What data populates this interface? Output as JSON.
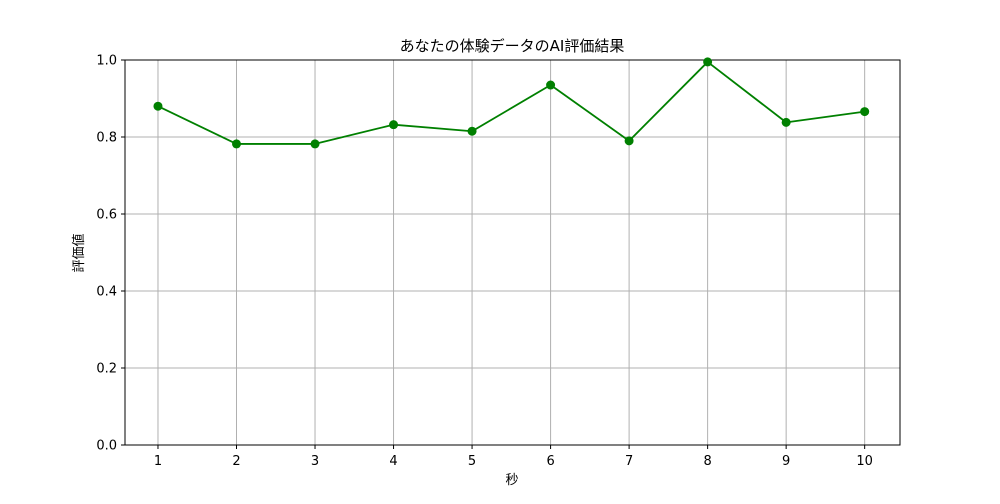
{
  "chart_data": {
    "type": "line",
    "title": "あなたの体験データのAI評価結果",
    "xlabel": "秒",
    "ylabel": "評価値",
    "x": [
      1,
      2,
      3,
      4,
      5,
      6,
      7,
      8,
      9,
      10
    ],
    "series": [
      {
        "values": [
          0.88,
          0.782,
          0.782,
          0.832,
          0.815,
          0.935,
          0.79,
          0.995,
          0.838,
          0.866
        ],
        "color": "#008000",
        "marker": "circle"
      }
    ],
    "xlim": [
      0.58,
      10.45
    ],
    "ylim": [
      0.0,
      1.0
    ],
    "xticks": [
      "1",
      "2",
      "3",
      "4",
      "5",
      "6",
      "7",
      "8",
      "9",
      "10"
    ],
    "yticks": [
      "0.0",
      "0.2",
      "0.4",
      "0.6",
      "0.8",
      "1.0"
    ],
    "grid": true,
    "grid_color": "#b0b0b0",
    "legend": false
  }
}
